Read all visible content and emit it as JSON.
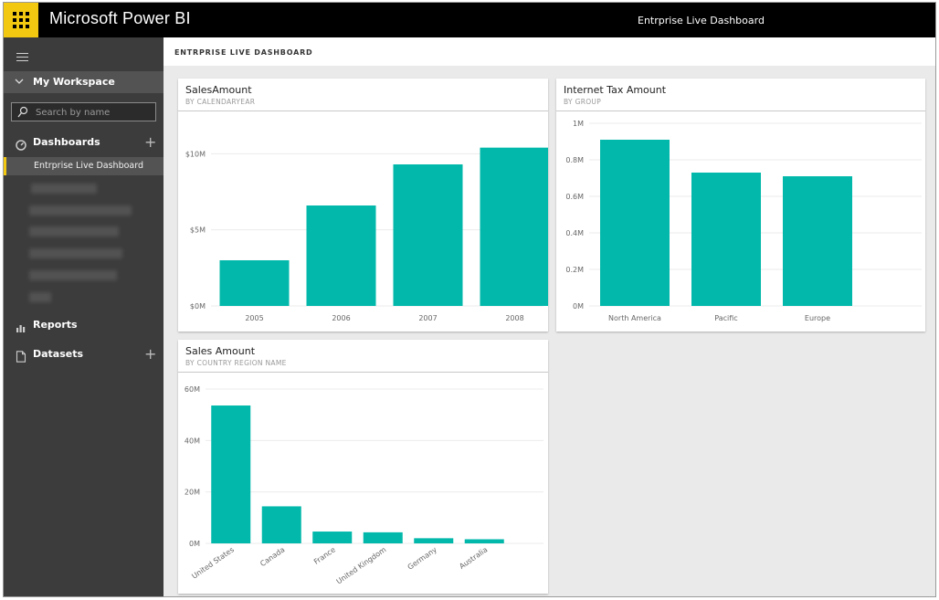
{
  "app": {
    "name": "Microsoft Power BI",
    "header_dashboard": "Entrprise Live Dashboard"
  },
  "nav": {
    "workspace_label": "My Workspace",
    "search_placeholder": "Search by name",
    "dashboards_label": "Dashboards",
    "active_dashboard": "Entrprise Live Dashboard",
    "reports_label": "Reports",
    "datasets_label": "Datasets"
  },
  "content": {
    "title": "ENTRPRISE LIVE DASHBOARD"
  },
  "colors": {
    "accent": "#f2c811",
    "bar": "#01b8aa"
  },
  "tiles": [
    {
      "title": "SalesAmount",
      "subtitle": "BY CALENDARYEAR",
      "chart_data": {
        "type": "bar",
        "title": "SalesAmount",
        "subtitle": "BY CALENDARYEAR",
        "categories": [
          "2005",
          "2006",
          "2007",
          "2008"
        ],
        "values": [
          3.0,
          6.6,
          9.3,
          10.4
        ],
        "ylim": [
          0,
          12
        ],
        "yticks": [
          0,
          5,
          10
        ],
        "ytick_labels": [
          "$0M",
          "$5M",
          "$10M"
        ],
        "grid": true,
        "color": "#01b8aa"
      }
    },
    {
      "title": "Internet Tax Amount",
      "subtitle": "BY GROUP",
      "chart_data": {
        "type": "bar",
        "title": "Internet Tax Amount",
        "subtitle": "BY GROUP",
        "categories": [
          "North America",
          "Pacific",
          "Europe"
        ],
        "values": [
          0.91,
          0.73,
          0.71
        ],
        "ylim": [
          0,
          1
        ],
        "yticks": [
          0,
          0.2,
          0.4,
          0.6,
          0.8,
          1
        ],
        "ytick_labels": [
          "0M",
          "0.2M",
          "0.4M",
          "0.6M",
          "0.8M",
          "1M"
        ],
        "grid": true,
        "color": "#01b8aa"
      }
    },
    {
      "title": "Sales Amount",
      "subtitle": "BY COUNTRY REGION NAME",
      "chart_data": {
        "type": "bar",
        "title": "Sales Amount",
        "subtitle": "BY COUNTRY REGION NAME",
        "categories": [
          "United States",
          "Canada",
          "France",
          "United Kingdom",
          "Germany",
          "Australia"
        ],
        "values": [
          53.6,
          14.4,
          4.6,
          4.3,
          2.0,
          1.6
        ],
        "ylim": [
          0,
          60
        ],
        "yticks": [
          0,
          20,
          40,
          60
        ],
        "ytick_labels": [
          "0M",
          "20M",
          "40M",
          "60M"
        ],
        "grid": true,
        "color": "#01b8aa"
      }
    }
  ]
}
